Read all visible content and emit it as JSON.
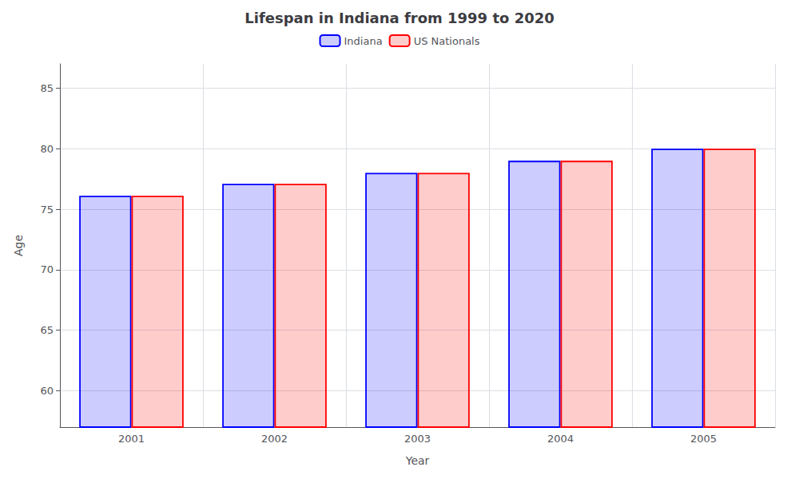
{
  "chart_data": {
    "type": "bar",
    "title": "Lifespan in Indiana from 1999 to 2020",
    "xlabel": "Year",
    "ylabel": "Age",
    "categories": [
      "2001",
      "2002",
      "2003",
      "2004",
      "2005"
    ],
    "series": [
      {
        "name": "Indiana",
        "color": "#0000ff",
        "values": [
          76.1,
          77.1,
          78.0,
          79.0,
          80.0
        ]
      },
      {
        "name": "US Nationals",
        "color": "#ff0000",
        "values": [
          76.1,
          77.1,
          78.0,
          79.0,
          80.0
        ]
      }
    ],
    "ylim": [
      57,
      87
    ],
    "yticks": [
      60,
      65,
      70,
      75,
      80,
      85
    ],
    "grid": true,
    "legend": "top"
  }
}
